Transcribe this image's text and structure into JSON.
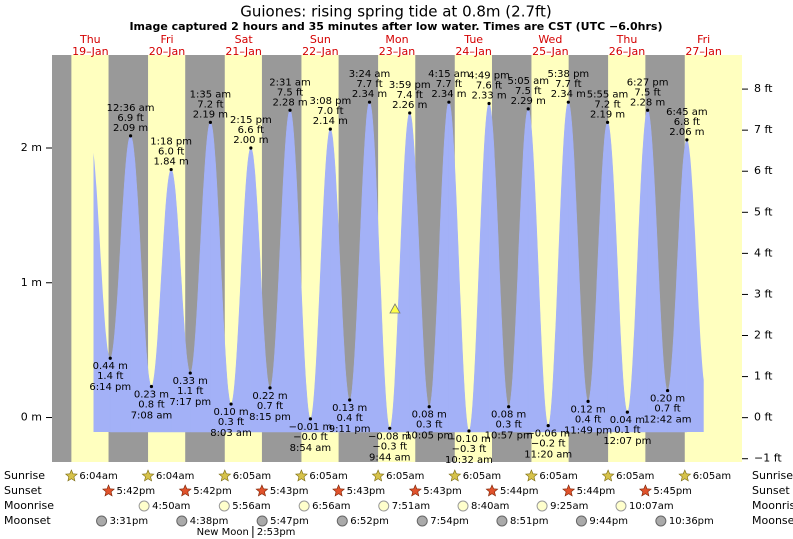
{
  "title": "Guiones: rising  spring tide at 0.8m (2.7ft)",
  "subtitle": "Image captured 2 hours and 35 minutes after low water. Times are CST (UTC −6.0hrs)",
  "chart_data": {
    "type": "tide",
    "ylim": [
      -0.33,
      2.69
    ],
    "yticks": [
      {
        "value": 0,
        "label": "0 m"
      },
      {
        "value": 1,
        "label": "1 m"
      },
      {
        "value": 2,
        "label": "2 m"
      }
    ],
    "y2lim": [
      -1.08,
      8.83
    ],
    "y2ticks": [
      {
        "value": -1,
        "label": "−1 ft"
      },
      {
        "value": 0,
        "label": "0 ft"
      },
      {
        "value": 1,
        "label": "1 ft"
      },
      {
        "value": 2,
        "label": "2 ft"
      },
      {
        "value": 3,
        "label": "3 ft"
      },
      {
        "value": 4,
        "label": "4 ft"
      },
      {
        "value": 5,
        "label": "5 ft"
      },
      {
        "value": 6,
        "label": "6 ft"
      },
      {
        "value": 7,
        "label": "7 ft"
      },
      {
        "value": 8,
        "label": "8 ft"
      }
    ],
    "colors": {
      "water": "#a3b1f7",
      "night": "#999999",
      "day": "#ffffbf",
      "date": "#d40000"
    },
    "row_labels": {
      "sunrise": "Sunrise",
      "sunset": "Sunset",
      "moonrise": "Moonrise",
      "moonset": "Moonset"
    },
    "days": [
      {
        "weekday": "Thu",
        "date": "19–Jan",
        "sunrise": "6:04am",
        "sunset": "5:42pm",
        "moonset": "3:31pm",
        "tides": [
          {
            "time": "6:14 pm",
            "ft": {
              "value": 1.4,
              "label": "1.4 ft"
            },
            "m": {
              "value": 0.44,
              "label": "0.44 m"
            }
          }
        ]
      },
      {
        "weekday": "Fri",
        "date": "20–Jan",
        "sunrise": "6:04am",
        "sunset": "5:42pm",
        "moonrise": "4:50am",
        "moonset": "4:38pm",
        "tides": [
          {
            "time": "12:36 am",
            "ft": {
              "value": 6.9,
              "label": "6.9 ft"
            },
            "m": {
              "value": 2.09,
              "label": "2.09 m"
            }
          },
          {
            "time": "7:08 am",
            "ft": {
              "value": 0.8,
              "label": "0.8 ft"
            },
            "m": {
              "value": 0.23,
              "label": "0.23 m"
            }
          },
          {
            "time": "1:18 pm",
            "ft": {
              "value": 6.0,
              "label": "6.0 ft"
            },
            "m": {
              "value": 1.84,
              "label": "1.84 m"
            }
          },
          {
            "time": "7:17 pm",
            "ft": {
              "value": 1.1,
              "label": "1.1 ft"
            },
            "m": {
              "value": 0.33,
              "label": "0.33 m"
            }
          }
        ]
      },
      {
        "weekday": "Sat",
        "date": "21–Jan",
        "sunrise": "6:05am",
        "sunset": "5:43pm",
        "moonrise": "5:56am",
        "moonset": "5:47pm",
        "new_moon": {
          "label": "New Moon",
          "time": "2:53pm"
        },
        "tides": [
          {
            "time": "1:35 am",
            "ft": {
              "value": 7.2,
              "label": "7.2 ft"
            },
            "m": {
              "value": 2.19,
              "label": "2.19 m"
            }
          },
          {
            "time": "8:03 am",
            "ft": {
              "value": 0.3,
              "label": "0.3 ft"
            },
            "m": {
              "value": 0.1,
              "label": "0.10 m"
            }
          },
          {
            "time": "2:15 pm",
            "ft": {
              "value": 6.6,
              "label": "6.6 ft"
            },
            "m": {
              "value": 2.0,
              "label": "2.00 m"
            }
          },
          {
            "time": "8:15 pm",
            "ft": {
              "value": 0.7,
              "label": "0.7 ft"
            },
            "m": {
              "value": 0.22,
              "label": "0.22 m"
            }
          }
        ]
      },
      {
        "weekday": "Sun",
        "date": "22–Jan",
        "sunrise": "6:05am",
        "sunset": "5:43pm",
        "moonrise": "6:56am",
        "moonset": "6:52pm",
        "tides": [
          {
            "time": "2:31 am",
            "ft": {
              "value": 7.5,
              "label": "7.5 ft"
            },
            "m": {
              "value": 2.28,
              "label": "2.28 m"
            }
          },
          {
            "time": "8:54 am",
            "ft": {
              "value": -0.0,
              "label": "−0.0 ft"
            },
            "m": {
              "value": -0.01,
              "label": "−0.01 m"
            }
          },
          {
            "time": "3:08 pm",
            "ft": {
              "value": 7.0,
              "label": "7.0 ft"
            },
            "m": {
              "value": 2.14,
              "label": "2.14 m"
            }
          },
          {
            "time": "9:11 pm",
            "ft": {
              "value": 0.4,
              "label": "0.4 ft"
            },
            "m": {
              "value": 0.13,
              "label": "0.13 m"
            }
          }
        ]
      },
      {
        "weekday": "Mon",
        "date": "23–Jan",
        "sunrise": "6:05am",
        "sunset": "5:43pm",
        "moonrise": "7:51am",
        "moonset": "7:54pm",
        "tides": [
          {
            "time": "3:24 am",
            "ft": {
              "value": 7.7,
              "label": "7.7 ft"
            },
            "m": {
              "value": 2.34,
              "label": "2.34 m"
            }
          },
          {
            "time": "9:44 am",
            "ft": {
              "value": -0.3,
              "label": "−0.3 ft"
            },
            "m": {
              "value": -0.08,
              "label": "−0.08 m"
            }
          },
          {
            "time": "3:59 pm",
            "ft": {
              "value": 7.4,
              "label": "7.4 ft"
            },
            "m": {
              "value": 2.26,
              "label": "2.26 m"
            }
          },
          {
            "time": "10:05 pm",
            "ft": {
              "value": 0.3,
              "label": "0.3 ft"
            },
            "m": {
              "value": 0.08,
              "label": "0.08 m"
            }
          }
        ]
      },
      {
        "weekday": "Tue",
        "date": "24–Jan",
        "sunrise": "6:05am",
        "sunset": "5:44pm",
        "moonrise": "8:40am",
        "moonset": "8:51pm",
        "tides": [
          {
            "time": "4:15 am",
            "ft": {
              "value": 7.7,
              "label": "7.7 ft"
            },
            "m": {
              "value": 2.34,
              "label": "2.34 m"
            }
          },
          {
            "time": "10:32 am",
            "ft": {
              "value": -0.3,
              "label": "−0.3 ft"
            },
            "m": {
              "value": -0.1,
              "label": "−0.10 m"
            }
          },
          {
            "time": "4:49 pm",
            "ft": {
              "value": 7.6,
              "label": "7.6 ft"
            },
            "m": {
              "value": 2.33,
              "label": "2.33 m"
            }
          },
          {
            "time": "10:57 pm",
            "ft": {
              "value": 0.3,
              "label": "0.3 ft"
            },
            "m": {
              "value": 0.08,
              "label": "0.08 m"
            }
          }
        ]
      },
      {
        "weekday": "Wed",
        "date": "25–Jan",
        "sunrise": "6:05am",
        "sunset": "5:44pm",
        "moonrise": "9:25am",
        "moonset": "9:44pm",
        "tides": [
          {
            "time": "5:05 am",
            "ft": {
              "value": 7.5,
              "label": "7.5 ft"
            },
            "m": {
              "value": 2.29,
              "label": "2.29 m"
            }
          },
          {
            "time": "11:20 am",
            "ft": {
              "value": -0.2,
              "label": "−0.2 ft"
            },
            "m": {
              "value": -0.06,
              "label": "−0.06 m"
            }
          },
          {
            "time": "5:38 pm",
            "ft": {
              "value": 7.7,
              "label": "7.7 ft"
            },
            "m": {
              "value": 2.34,
              "label": "2.34 m"
            }
          },
          {
            "time": "11:49 pm",
            "ft": {
              "value": 0.4,
              "label": "0.4 ft"
            },
            "m": {
              "value": 0.12,
              "label": "0.12 m"
            }
          }
        ]
      },
      {
        "weekday": "Thu",
        "date": "26–Jan",
        "sunrise": "6:05am",
        "sunset": "5:45pm",
        "moonrise": "10:07am",
        "moonset": "10:36pm",
        "tides": [
          {
            "time": "5:55 am",
            "ft": {
              "value": 7.2,
              "label": "7.2 ft"
            },
            "m": {
              "value": 2.19,
              "label": "2.19 m"
            }
          },
          {
            "time": "12:07 pm",
            "ft": {
              "value": 0.1,
              "label": "0.1 ft"
            },
            "m": {
              "value": 0.04,
              "label": "0.04 m"
            }
          },
          {
            "time": "6:27 pm",
            "ft": {
              "value": 7.5,
              "label": "7.5 ft"
            },
            "m": {
              "value": 2.28,
              "label": "2.28 m"
            }
          }
        ]
      },
      {
        "weekday": "Fri",
        "date": "27–Jan",
        "sunrise": "6:05am",
        "tides": [
          {
            "time": "12:42 am",
            "ft": {
              "value": 0.7,
              "label": "0.7 ft"
            },
            "m": {
              "value": 0.2,
              "label": "0.20 m"
            }
          },
          {
            "time": "6:45 am",
            "ft": {
              "value": 6.8,
              "label": "6.8 ft"
            },
            "m": {
              "value": 2.06,
              "label": "2.06 m"
            }
          }
        ]
      }
    ]
  }
}
